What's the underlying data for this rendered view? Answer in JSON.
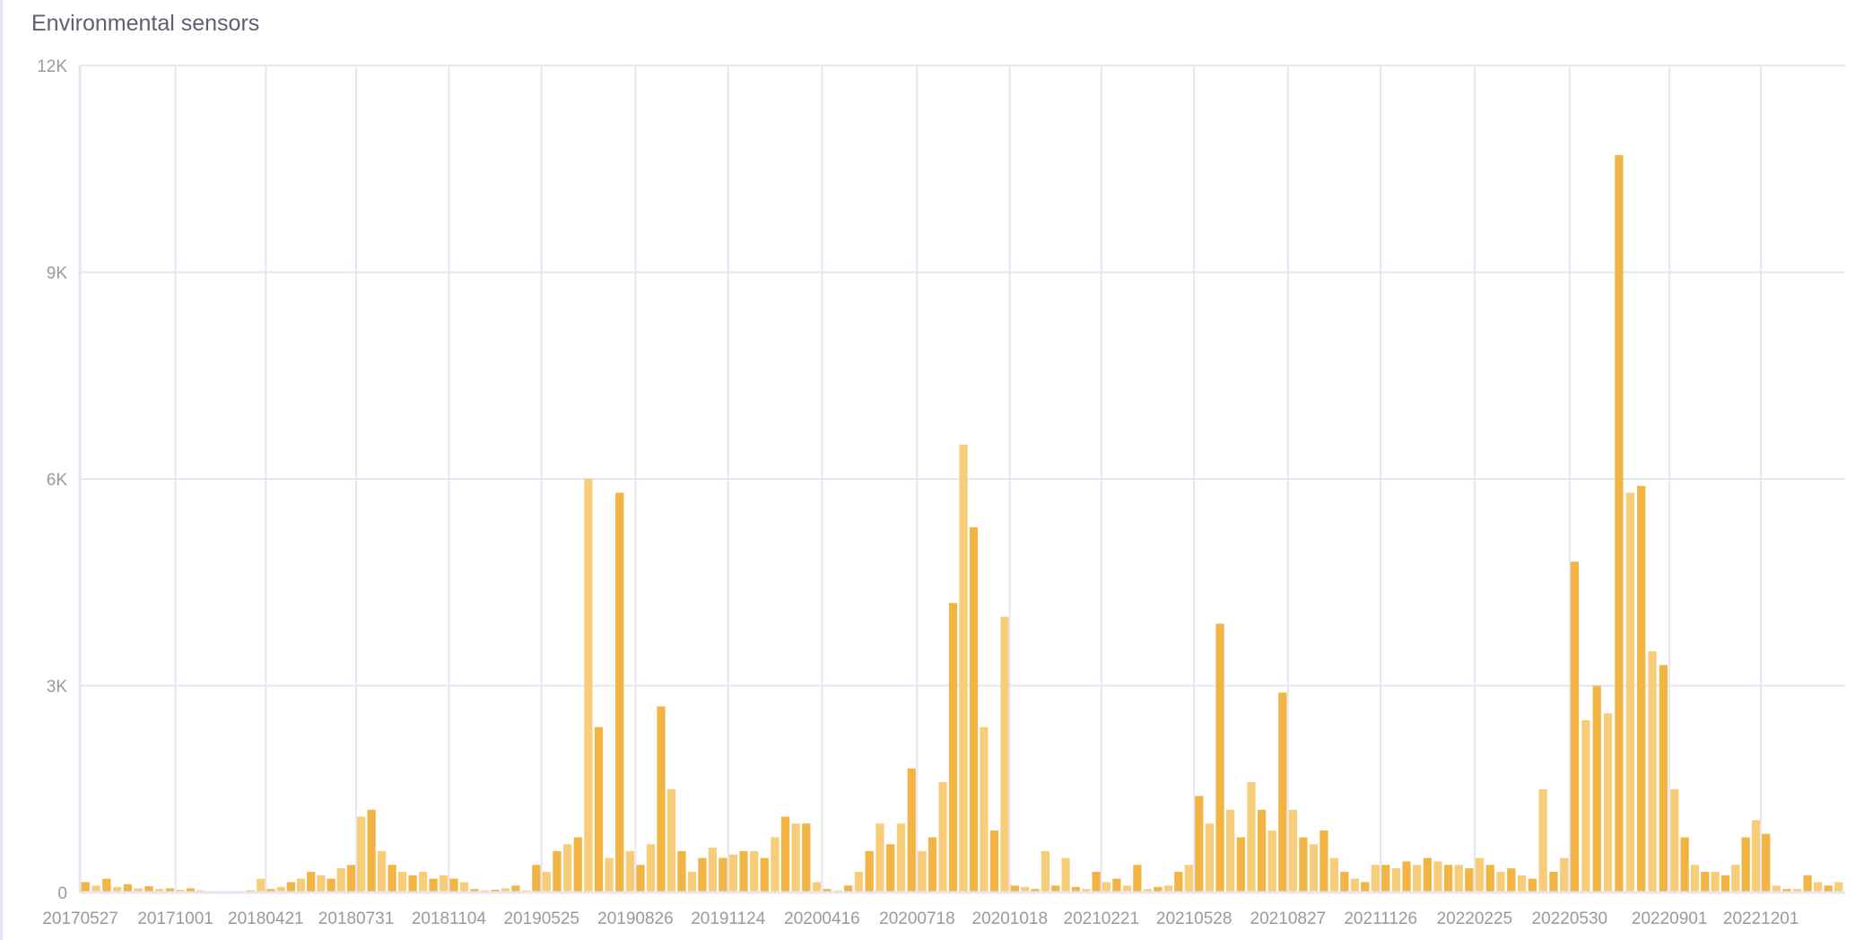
{
  "title": "Environmental sensors",
  "chart_data": {
    "type": "bar",
    "title": "Environmental sensors",
    "xlabel": "",
    "ylabel": "",
    "ylim": [
      0,
      12000
    ],
    "yticks": [
      0,
      3000,
      6000,
      9000,
      12000
    ],
    "ytick_labels": [
      "0",
      "3K",
      "6K",
      "9K",
      "12K"
    ],
    "xtick_labels": [
      "20170527",
      "20171001",
      "20180421",
      "20180731",
      "20181104",
      "20190525",
      "20190826",
      "20191124",
      "20200416",
      "20200718",
      "20201018",
      "20210221",
      "20210528",
      "20210827",
      "20211126",
      "20220225",
      "20220530",
      "20220901",
      "20221201"
    ],
    "grid": true,
    "bar_color": "#f2b443",
    "bar_color_alt": "#f7cd7a",
    "grid_color": "#e6e5f4",
    "values_per_tick_interval": 9,
    "values": [
      150,
      100,
      200,
      80,
      120,
      60,
      90,
      50,
      60,
      40,
      60,
      30,
      20,
      10,
      10,
      20,
      30,
      200,
      50,
      80,
      150,
      200,
      300,
      250,
      200,
      350,
      400,
      1100,
      1200,
      600,
      400,
      300,
      250,
      300,
      200,
      250,
      200,
      150,
      50,
      30,
      40,
      60,
      100,
      30,
      400,
      300,
      600,
      700,
      800,
      6000,
      2400,
      500,
      5800,
      600,
      400,
      700,
      2700,
      1500,
      600,
      300,
      500,
      650,
      500,
      550,
      600,
      600,
      500,
      800,
      1100,
      1000,
      1000,
      150,
      50,
      30,
      100,
      300,
      600,
      1000,
      700,
      1000,
      1800,
      600,
      800,
      1600,
      4200,
      6500,
      5300,
      2400,
      900,
      4000,
      100,
      80,
      50,
      600,
      100,
      500,
      80,
      50,
      300,
      150,
      200,
      100,
      400,
      50,
      80,
      100,
      300,
      400,
      1400,
      1000,
      3900,
      1200,
      800,
      1600,
      1200,
      900,
      2900,
      1200,
      800,
      700,
      900,
      500,
      300,
      200,
      150,
      400,
      400,
      350,
      450,
      400,
      500,
      450,
      400,
      400,
      350,
      500,
      400,
      300,
      350,
      250,
      200,
      1500,
      300,
      500,
      4800,
      2500,
      3000,
      2600,
      10700,
      5800,
      5900,
      3500,
      3300,
      1500,
      800,
      400,
      300,
      300,
      250,
      400,
      800,
      1050,
      850,
      100,
      50,
      50,
      250,
      150,
      100,
      150
    ]
  }
}
